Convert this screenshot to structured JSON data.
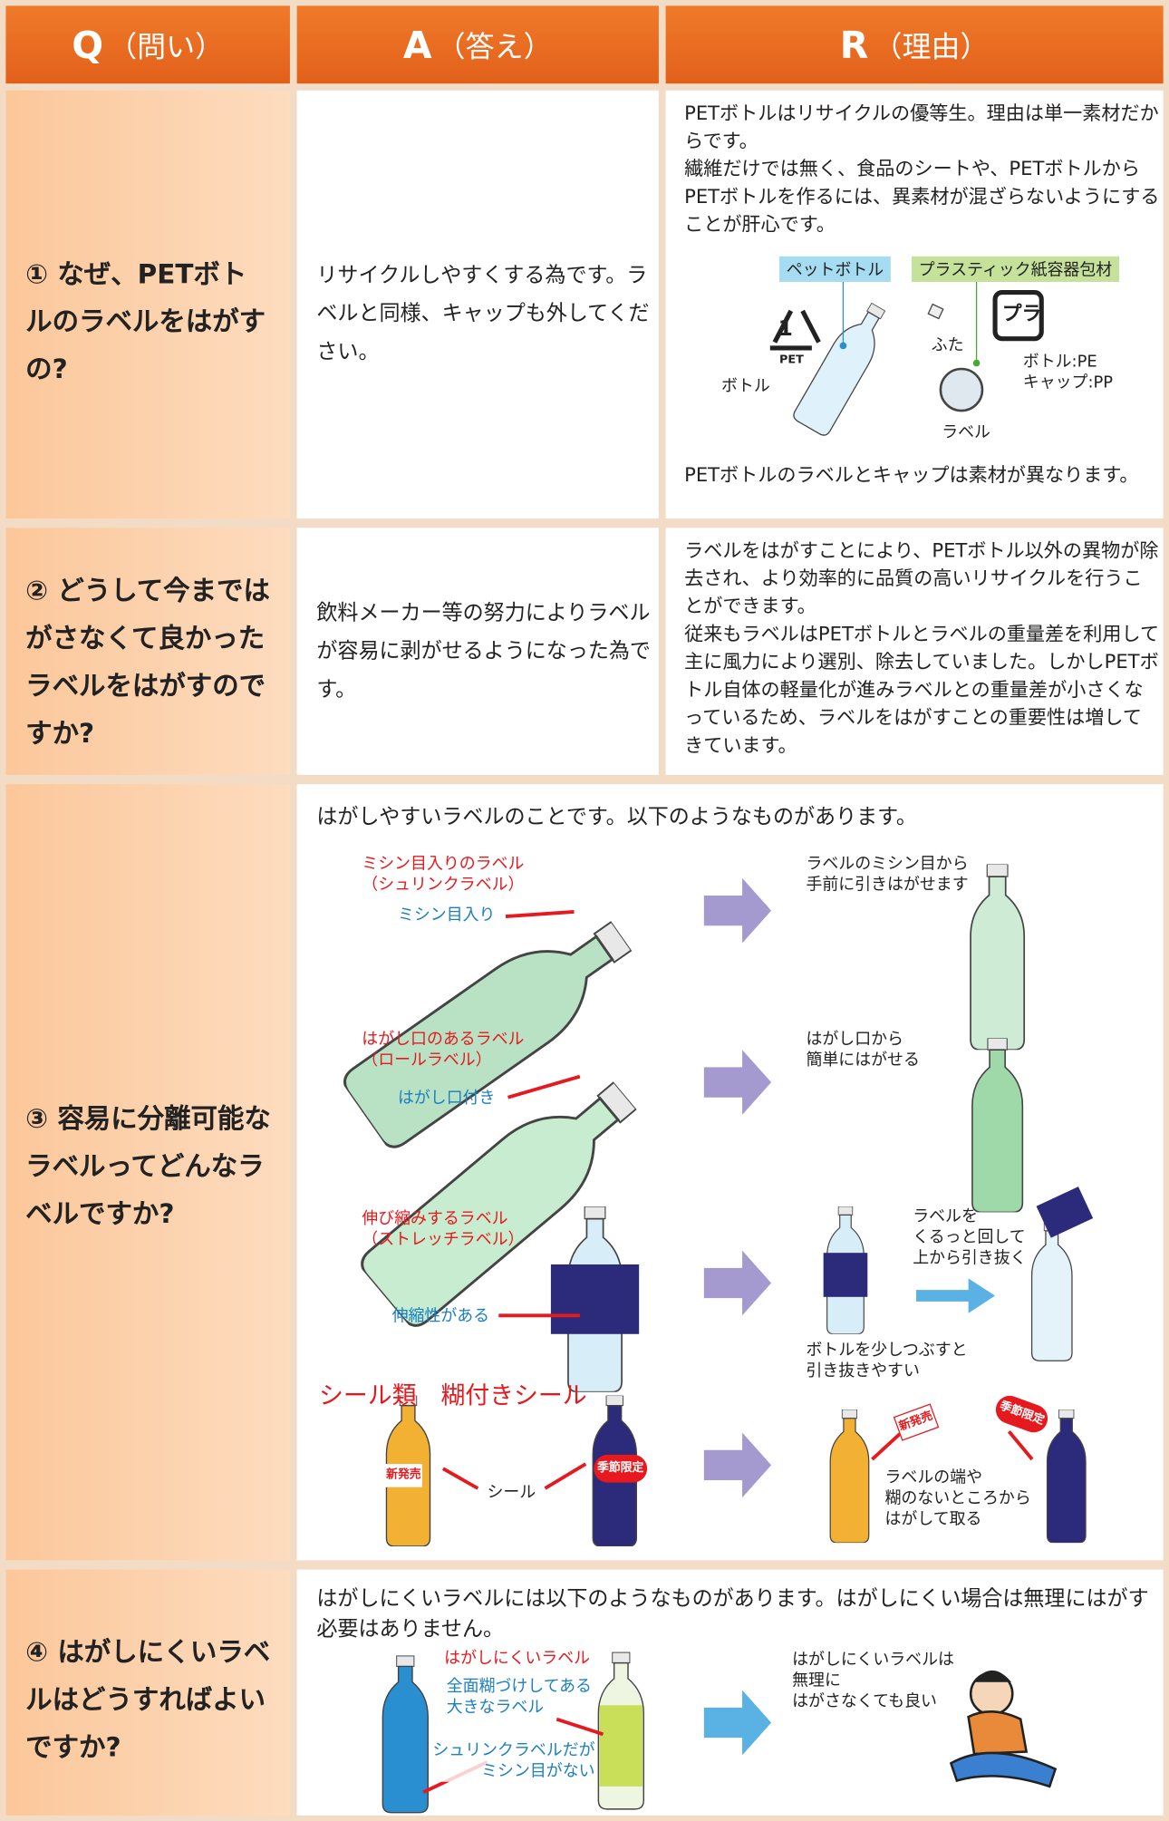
{
  "header": {
    "q_letter": "Q",
    "q_label": "（問い）",
    "a_letter": "A",
    "a_label": "（答え）",
    "r_letter": "R",
    "r_label": "（理由）"
  },
  "rows": [
    {
      "question": "①  なぜ、PETボトルのラベルをはがすの?",
      "answer": "リサイクルしやすくする為です。ラベルと同様、キャップも外してください。",
      "reason": [
        "PETボトルはリサイクルの優等生。理由は単一素材だからです。",
        "繊維だけでは無く、食品のシートや、PETボトルからPETボトルを作るには、異素材が混ざらないようにすることが肝心です。"
      ],
      "figure": {
        "pet_tag": "ペットボトル",
        "plastic_tag": "プラスティック紙容器包材",
        "pet_mark": "PET",
        "bottle": "ボトル",
        "cap": "ふた",
        "label": "ラベル",
        "pla_mark": "プラ",
        "materials": [
          "ボトル:PE",
          "キャップ:PP"
        ]
      },
      "note": "PETボトルのラベルとキャップは素材が異なります。"
    },
    {
      "question": "②  どうして今まではがさなくて良かったラベルをはがすのですか?",
      "answer": "飲料メーカー等の努力によりラベルが容易に剥がせるようになった為です。",
      "reason": [
        "ラベルをはがすことにより、PETボトル以外の異物が除去され、より効率的に品質の高いリサイクルを行うことができます。",
        "従来もラベルはPETボトルとラベルの重量差を利用して主に風力により選別、除去していました。しかしPETボトル自体の軽量化が進みラベルとの重量差が小さくなっているため、ラベルをはがすことの重要性は増してきています。"
      ]
    },
    {
      "question": "③  容易に分離可能なラベルってどんなラベルですか?",
      "intro": "はがしやすいラベルのことです。以下のようなものがあります。",
      "items": [
        {
          "title": [
            "ミシン目入りのラベル",
            "（シュリンクラベル）"
          ],
          "pointer": "ミシン目入り",
          "after": [
            "ラベルのミシン目から",
            "手前に引きはがせます"
          ]
        },
        {
          "title": [
            "はがし口のあるラベル",
            "（ロールラベル）"
          ],
          "pointer": "はがし口付き",
          "after": [
            "はがし口から",
            "簡単にはがせる"
          ]
        },
        {
          "title": [
            "伸び縮みするラベル",
            "（ストレッチラベル）"
          ],
          "pointer": "伸縮性がある",
          "after": [
            "ラベルを",
            "くるっと回して",
            "上から引き抜く"
          ],
          "after2": [
            "ボトルを少しつぶすと",
            "引き抜きやすい"
          ]
        }
      ],
      "seal": {
        "title": "シール類　糊付きシール",
        "sticker_new": "新発売",
        "sticker_season": "季節限定",
        "pointer": "シール",
        "after": [
          "ラベルの端や",
          "糊のないところから",
          "はがして取る"
        ]
      }
    },
    {
      "question": "④  はがしにくいラベルはどうすればよいですか?",
      "intro": "はがしにくいラベルには以下のようなものがあります。はがしにくい場合は無理にはがす必要はありません。",
      "figure": {
        "title": "はがしにくいラベル",
        "glued": [
          "全面糊づけしてある",
          "大きなラベル"
        ],
        "shrink": [
          "シュリンクラベルだが",
          "ミシン目がない"
        ],
        "after": [
          "はがしにくいラベルは",
          "無理に",
          "はがさなくても良い"
        ]
      }
    }
  ]
}
